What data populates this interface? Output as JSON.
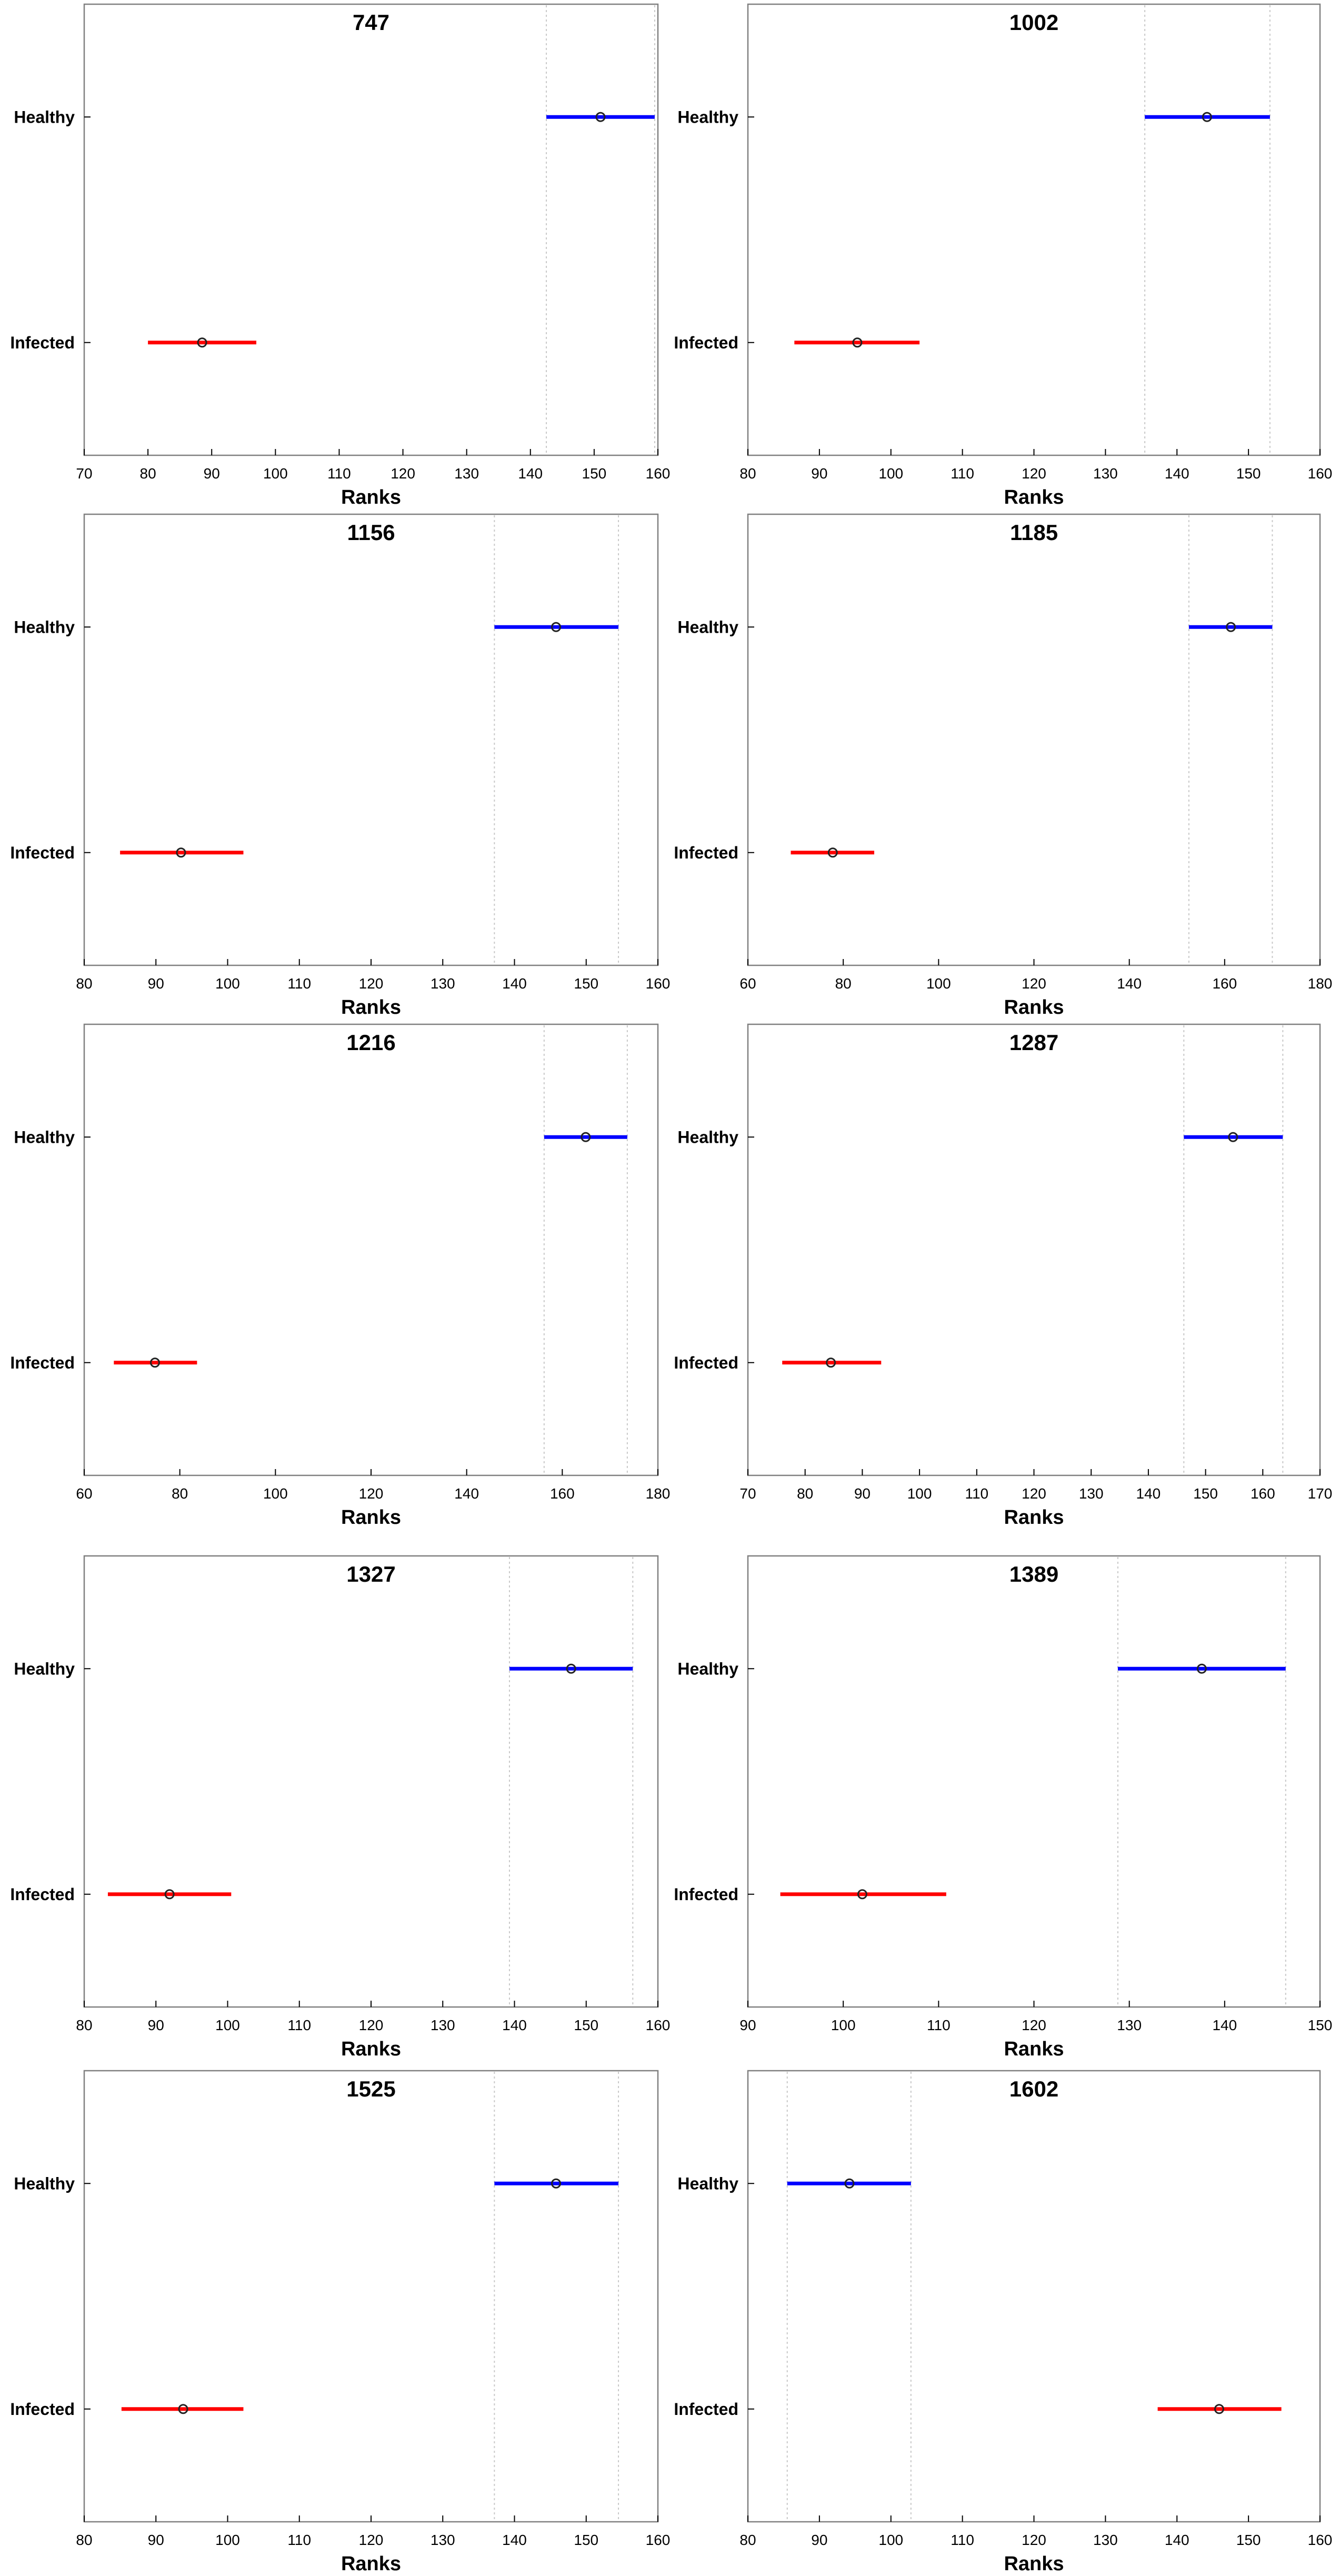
{
  "figure": {
    "colors": {
      "healthy": "#0000ff",
      "infected": "#ff0000",
      "axis": "#000000",
      "frame": "#808080",
      "refline": "#c8c8c8"
    }
  },
  "chart_data": [
    {
      "type": "interval",
      "title": "747",
      "xlabel": "Ranks",
      "categories": [
        "Healthy",
        "Infected"
      ],
      "xlim": [
        70,
        160
      ],
      "xticks": [
        70,
        80,
        90,
        100,
        110,
        120,
        130,
        140,
        150,
        160
      ],
      "series": [
        {
          "name": "Healthy",
          "center": 151,
          "low": 142.5,
          "high": 159.5
        },
        {
          "name": "Infected",
          "center": 88.5,
          "low": 80,
          "high": 97
        }
      ],
      "ref_lines": [
        142.5,
        159.5
      ]
    },
    {
      "type": "interval",
      "title": "1002",
      "xlabel": "Ranks",
      "categories": [
        "Healthy",
        "Infected"
      ],
      "xlim": [
        80,
        160
      ],
      "xticks": [
        80,
        90,
        100,
        110,
        120,
        130,
        140,
        150,
        160
      ],
      "series": [
        {
          "name": "Healthy",
          "center": 144.2,
          "low": 135.5,
          "high": 153
        },
        {
          "name": "Infected",
          "center": 95.3,
          "low": 86.5,
          "high": 104
        }
      ],
      "ref_lines": [
        135.5,
        153
      ]
    },
    {
      "type": "interval",
      "title": "1156",
      "xlabel": "Ranks",
      "categories": [
        "Healthy",
        "Infected"
      ],
      "xlim": [
        80,
        160
      ],
      "xticks": [
        80,
        90,
        100,
        110,
        120,
        130,
        140,
        150,
        160
      ],
      "series": [
        {
          "name": "Healthy",
          "center": 145.8,
          "low": 137.2,
          "high": 154.5
        },
        {
          "name": "Infected",
          "center": 93.5,
          "low": 85,
          "high": 102.2
        }
      ],
      "ref_lines": [
        137.2,
        154.5
      ]
    },
    {
      "type": "interval",
      "title": "1185",
      "xlabel": "Ranks",
      "categories": [
        "Healthy",
        "Infected"
      ],
      "xlim": [
        60,
        180
      ],
      "xticks": [
        60,
        80,
        100,
        120,
        140,
        160,
        180
      ],
      "series": [
        {
          "name": "Healthy",
          "center": 161.3,
          "low": 152.5,
          "high": 170
        },
        {
          "name": "Infected",
          "center": 77.8,
          "low": 69,
          "high": 86.5
        }
      ],
      "ref_lines": [
        152.5,
        170
      ]
    },
    {
      "type": "interval",
      "title": "1216",
      "xlabel": "Ranks",
      "categories": [
        "Healthy",
        "Infected"
      ],
      "xlim": [
        60,
        180
      ],
      "xticks": [
        60,
        80,
        100,
        120,
        140,
        160,
        180
      ],
      "series": [
        {
          "name": "Healthy",
          "center": 164.9,
          "low": 156.2,
          "high": 173.6
        },
        {
          "name": "Infected",
          "center": 74.8,
          "low": 66.2,
          "high": 83.6
        }
      ],
      "ref_lines": [
        156.2,
        173.6
      ]
    },
    {
      "type": "interval",
      "title": "1287",
      "xlabel": "Ranks",
      "categories": [
        "Healthy",
        "Infected"
      ],
      "xlim": [
        70,
        170
      ],
      "xticks": [
        70,
        80,
        90,
        100,
        110,
        120,
        130,
        140,
        150,
        160,
        170
      ],
      "series": [
        {
          "name": "Healthy",
          "center": 154.8,
          "low": 146.2,
          "high": 163.5
        },
        {
          "name": "Infected",
          "center": 84.5,
          "low": 76,
          "high": 93.3
        }
      ],
      "ref_lines": [
        146.2,
        163.5
      ]
    },
    {
      "type": "interval",
      "title": "1327",
      "xlabel": "Ranks",
      "categories": [
        "Healthy",
        "Infected"
      ],
      "xlim": [
        80,
        160
      ],
      "xticks": [
        80,
        90,
        100,
        110,
        120,
        130,
        140,
        150,
        160
      ],
      "series": [
        {
          "name": "Healthy",
          "center": 147.9,
          "low": 139.3,
          "high": 156.5
        },
        {
          "name": "Infected",
          "center": 91.9,
          "low": 83.3,
          "high": 100.5
        }
      ],
      "ref_lines": [
        139.3,
        156.5
      ]
    },
    {
      "type": "interval",
      "title": "1389",
      "xlabel": "Ranks",
      "categories": [
        "Healthy",
        "Infected"
      ],
      "xlim": [
        90,
        150
      ],
      "xticks": [
        90,
        100,
        110,
        120,
        130,
        140,
        150
      ],
      "series": [
        {
          "name": "Healthy",
          "center": 137.6,
          "low": 128.8,
          "high": 146.4
        },
        {
          "name": "Infected",
          "center": 102,
          "low": 93.4,
          "high": 110.8
        }
      ],
      "ref_lines": [
        128.8,
        146.4
      ]
    },
    {
      "type": "interval",
      "title": "1525",
      "xlabel": "Ranks",
      "categories": [
        "Healthy",
        "Infected"
      ],
      "xlim": [
        80,
        160
      ],
      "xticks": [
        80,
        90,
        100,
        110,
        120,
        130,
        140,
        150,
        160
      ],
      "series": [
        {
          "name": "Healthy",
          "center": 145.8,
          "low": 137.2,
          "high": 154.5
        },
        {
          "name": "Infected",
          "center": 93.8,
          "low": 85.2,
          "high": 102.2
        }
      ],
      "ref_lines": [
        137.2,
        154.5
      ]
    },
    {
      "type": "interval",
      "title": "1602",
      "xlabel": "Ranks",
      "categories": [
        "Healthy",
        "Infected"
      ],
      "xlim": [
        80,
        160
      ],
      "xticks": [
        80,
        90,
        100,
        110,
        120,
        130,
        140,
        150,
        160
      ],
      "series": [
        {
          "name": "Healthy",
          "center": 94.2,
          "low": 85.5,
          "high": 102.8
        },
        {
          "name": "Infected",
          "center": 145.9,
          "low": 137.3,
          "high": 154.6
        }
      ],
      "ref_lines": [
        85.5,
        102.8
      ]
    }
  ]
}
